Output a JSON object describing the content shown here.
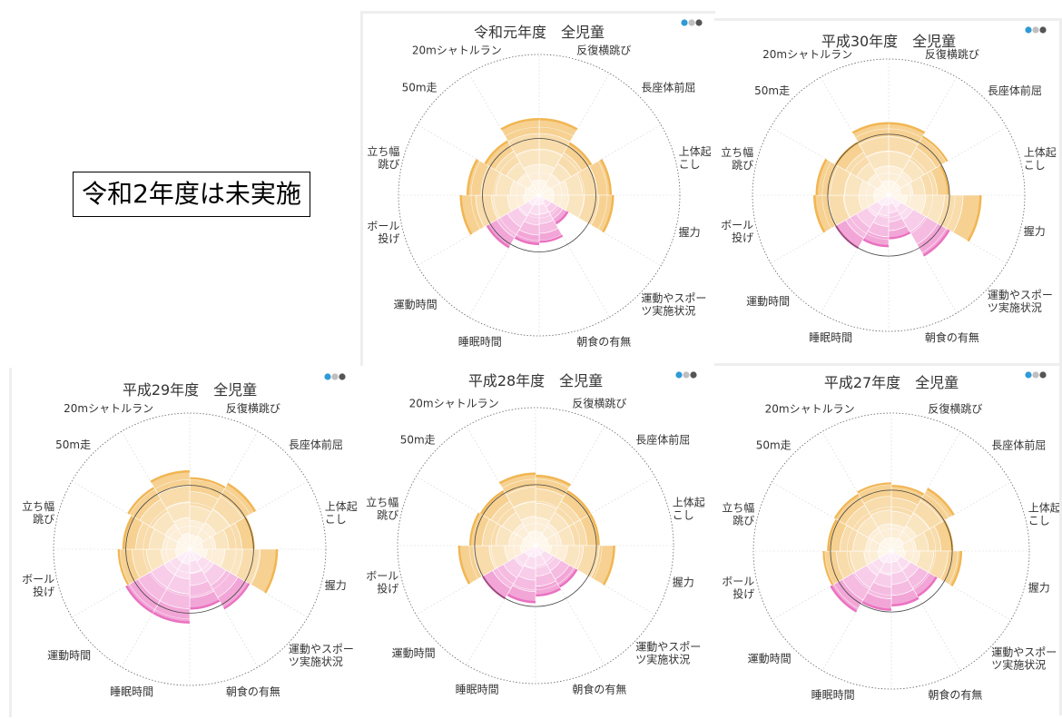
{
  "note_text": "令和2年度は未実施",
  "legend_colors": [
    "#2e9bd6",
    "#bfbfbf",
    "#555555"
  ],
  "chart_data": [
    {
      "type": "polar-bar",
      "title": "令和元年度　全児童",
      "categories": [
        "反復横跳び",
        "長座体前屈",
        "上体起こし",
        "握力",
        "運動やスポーツ実施状況",
        "朝食の有無",
        "睡眠時間",
        "運動時間",
        "ボール投げ",
        "立ち幅跳び",
        "50m走",
        "20mシャトルラン"
      ],
      "values": [
        68,
        54,
        64,
        66,
        30,
        42,
        44,
        54,
        70,
        64,
        56,
        68
      ],
      "ring_values": [
        20,
        40,
        60
      ],
      "reference_circle": 50,
      "rlim": [
        0,
        100
      ],
      "colors": {
        "fitness": "#f0b24a",
        "lifestyle": "#e96bbd"
      }
    },
    {
      "type": "polar-bar",
      "title": "平成30年度　全児童",
      "categories": [
        "反復横跳び",
        "長座体前屈",
        "上体起こし",
        "握力",
        "運動やスポーツ実施状況",
        "朝食の有無",
        "睡眠時間",
        "運動時間",
        "ボール投げ",
        "立ち幅跳び",
        "50m走",
        "20mシャトルラン"
      ],
      "values": [
        66,
        62,
        55,
        84,
        64,
        40,
        47,
        56,
        68,
        66,
        56,
        66
      ],
      "ring_values": [
        20,
        40,
        60
      ],
      "reference_circle": 55,
      "rlim": [
        0,
        100
      ],
      "colors": {
        "fitness": "#f0b24a",
        "lifestyle": "#e96bbd"
      }
    },
    {
      "type": "polar-bar",
      "title": "平成29年度　全児童",
      "categories": [
        "反復横跳び",
        "長座体前屈",
        "上体起こし",
        "握力",
        "運動やスポーツ実施状況",
        "朝食の有無",
        "睡眠時間",
        "運動時間",
        "ボール投げ",
        "立ち幅跳び",
        "50m走",
        "20mシャトルラン"
      ],
      "values": [
        62,
        66,
        56,
        76,
        60,
        52,
        64,
        64,
        62,
        58,
        62,
        68
      ],
      "ring_values": [
        20,
        40,
        60
      ],
      "reference_circle": 55,
      "rlim": [
        0,
        100
      ],
      "colors": {
        "fitness": "#f0b24a",
        "lifestyle": "#e96bbd"
      }
    },
    {
      "type": "polar-bar",
      "title": "平成28年度　全児童",
      "categories": [
        "反復横跳び",
        "長座体前屈",
        "上体起こし",
        "握力",
        "運動やスポーツ実施状況",
        "朝食の有無",
        "睡眠時間",
        "運動時間",
        "ボール投げ",
        "立ち幅跳び",
        "50m走",
        "20mシャトルラン"
      ],
      "values": [
        64,
        58,
        58,
        72,
        44,
        46,
        52,
        56,
        70,
        60,
        58,
        66
      ],
      "ring_values": [
        20,
        40,
        60
      ],
      "reference_circle": 55,
      "rlim": [
        0,
        100
      ],
      "colors": {
        "fitness": "#f0b24a",
        "lifestyle": "#e96bbd"
      }
    },
    {
      "type": "polar-bar",
      "title": "平成27年度　全児童",
      "categories": [
        "反復横跳び",
        "長座体前屈",
        "上体起こし",
        "握力",
        "運動やスポーツ実施状況",
        "朝食の有無",
        "睡眠時間",
        "運動時間",
        "ボール投げ",
        "立ち幅跳び",
        "50m走",
        "20mシャトルラン"
      ],
      "values": [
        60,
        66,
        56,
        64,
        48,
        50,
        54,
        64,
        62,
        58,
        60,
        62
      ],
      "ring_values": [
        20,
        40,
        60
      ],
      "reference_circle": 55,
      "rlim": [
        0,
        100
      ],
      "colors": {
        "fitness": "#f0b24a",
        "lifestyle": "#e96bbd"
      }
    }
  ]
}
